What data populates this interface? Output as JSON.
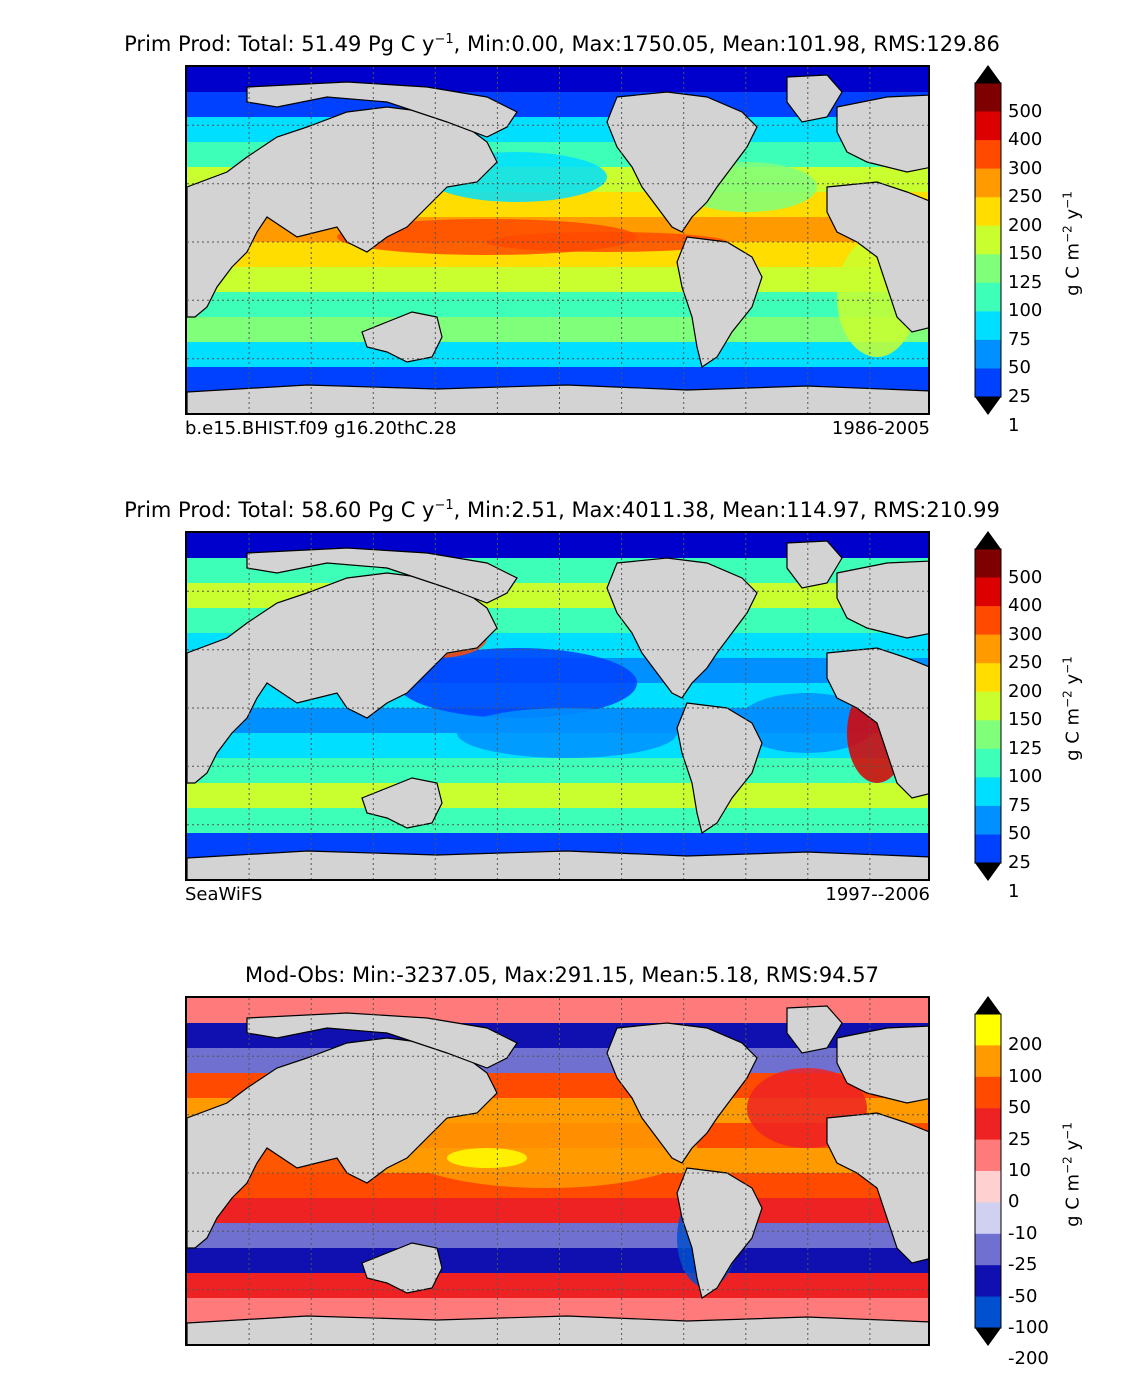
{
  "panels": [
    {
      "title_prefix": "Prim Prod: Total: 51.49 Pg C y",
      "title_exp": "−1",
      "title_suffix": ", Min:0.00, Max:1750.05, Mean:101.98, RMS:129.86",
      "caption_left": "b.e15.BHIST.f09 g16.20thC.28",
      "caption_right": "1986-2005",
      "colorbar": {
        "labels": [
          "500",
          "400",
          "300",
          "250",
          "200",
          "150",
          "125",
          "100",
          "75",
          "50",
          "25",
          "1"
        ],
        "colors": [
          "#7f0000",
          "#dd0000",
          "#ff4a00",
          "#ff9a00",
          "#ffdd00",
          "#c9ff2e",
          "#80ff7a",
          "#3effb8",
          "#00dfff",
          "#0090ff",
          "#0040ff",
          "#0000cd",
          "#00008b"
        ],
        "unit_prefix": "g C m",
        "unit_exp1": "−2",
        "unit_mid": " y",
        "unit_exp2": "−1"
      },
      "dominant_bands": [
        "#00008b",
        "#0040ff",
        "#00dfff",
        "#3effb8",
        "#80ff7a",
        "#c9ff2e",
        "#ffdd00",
        "#ff4a00"
      ]
    },
    {
      "title_prefix": "Prim Prod: Total: 58.60 Pg C y",
      "title_exp": "−1",
      "title_suffix": ", Min:2.51, Max:4011.38, Mean:114.97, RMS:210.99",
      "caption_left": "SeaWiFS",
      "caption_right": "1997--2006",
      "colorbar": {
        "labels": [
          "500",
          "400",
          "300",
          "250",
          "200",
          "150",
          "125",
          "100",
          "75",
          "50",
          "25",
          "1"
        ],
        "colors": [
          "#7f0000",
          "#dd0000",
          "#ff4a00",
          "#ff9a00",
          "#ffdd00",
          "#c9ff2e",
          "#80ff7a",
          "#3effb8",
          "#00dfff",
          "#0090ff",
          "#0040ff",
          "#0000cd",
          "#00008b"
        ],
        "unit_prefix": "g C m",
        "unit_exp1": "−2",
        "unit_mid": " y",
        "unit_exp2": "−1"
      }
    },
    {
      "title_prefix": "Mod-Obs: Min:-3237.05, Max:291.15, Mean:5.18, RMS:94.57",
      "title_exp": "",
      "title_suffix": "",
      "caption_left": "",
      "caption_right": "",
      "colorbar": {
        "labels": [
          "200",
          "100",
          "50",
          "25",
          "10",
          "0",
          "-10",
          "-25",
          "-50",
          "-100",
          "-200"
        ],
        "colors": [
          "#ffff00",
          "#ff9a00",
          "#ff4a00",
          "#ee2222",
          "#ff7b7b",
          "#ffd0d0",
          "#d0d0f0",
          "#7070d0",
          "#1010b0",
          "#0050d0",
          "#00a0e0",
          "#00ffff"
        ],
        "unit_prefix": "g C m",
        "unit_exp1": "−2",
        "unit_mid": " y",
        "unit_exp2": "−1"
      }
    }
  ],
  "map": {
    "land_color": "#d3d3d3",
    "grid_color": "#555555"
  }
}
